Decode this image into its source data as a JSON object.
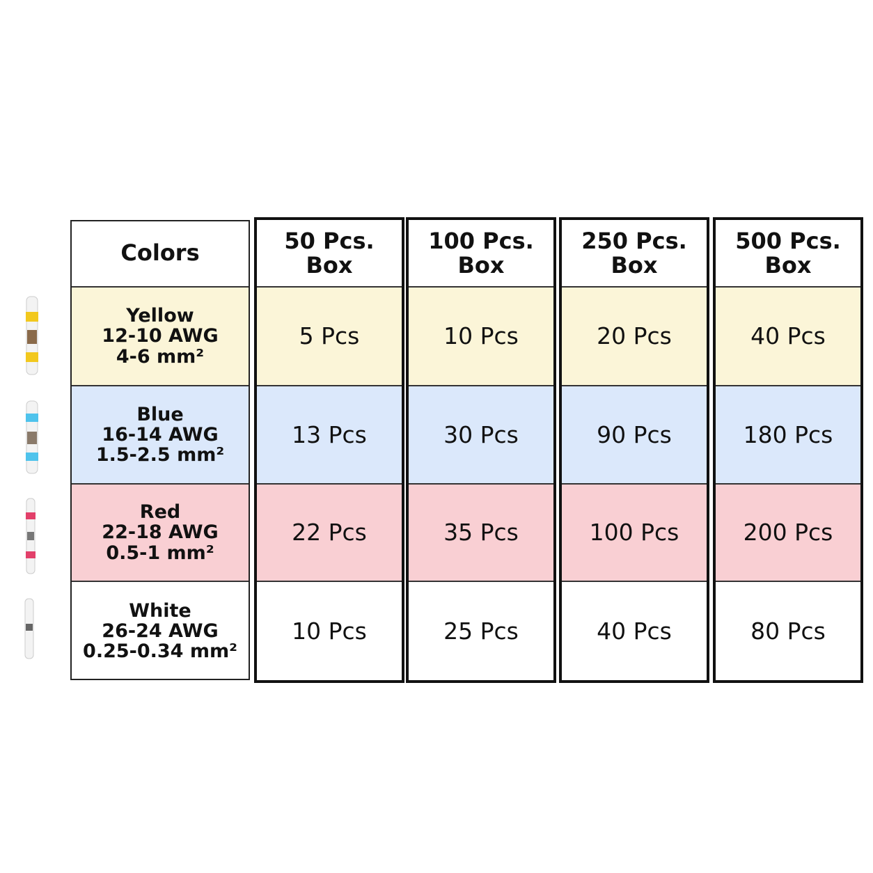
{
  "table": {
    "header": [
      [
        "Colors"
      ],
      [
        "50 Pcs.",
        "Box"
      ],
      [
        "100 Pcs.",
        "Box"
      ],
      [
        "250 Pcs.",
        "Box"
      ],
      [
        "500 Pcs.",
        "Box"
      ]
    ],
    "rows": [
      {
        "label": [
          "Yellow",
          "12-10 AWG",
          "4-6 mm²"
        ],
        "cells": [
          "5 Pcs",
          "10 Pcs",
          "20 Pcs",
          "40 Pcs"
        ]
      },
      {
        "label": [
          "Blue",
          "16-14 AWG",
          "1.5-2.5 mm²"
        ],
        "cells": [
          "13 Pcs",
          "30 Pcs",
          "90 Pcs",
          "180 Pcs"
        ]
      },
      {
        "label": [
          "Red",
          "22-18 AWG",
          "0.5-1 mm²"
        ],
        "cells": [
          "22 Pcs",
          "35 Pcs",
          "100 Pcs",
          "200 Pcs"
        ]
      },
      {
        "label": [
          "White",
          "26-24 AWG",
          "0.25-0.34 mm²"
        ],
        "cells": [
          "10 Pcs",
          "25 Pcs",
          "40 Pcs",
          "80 Pcs"
        ]
      }
    ]
  }
}
